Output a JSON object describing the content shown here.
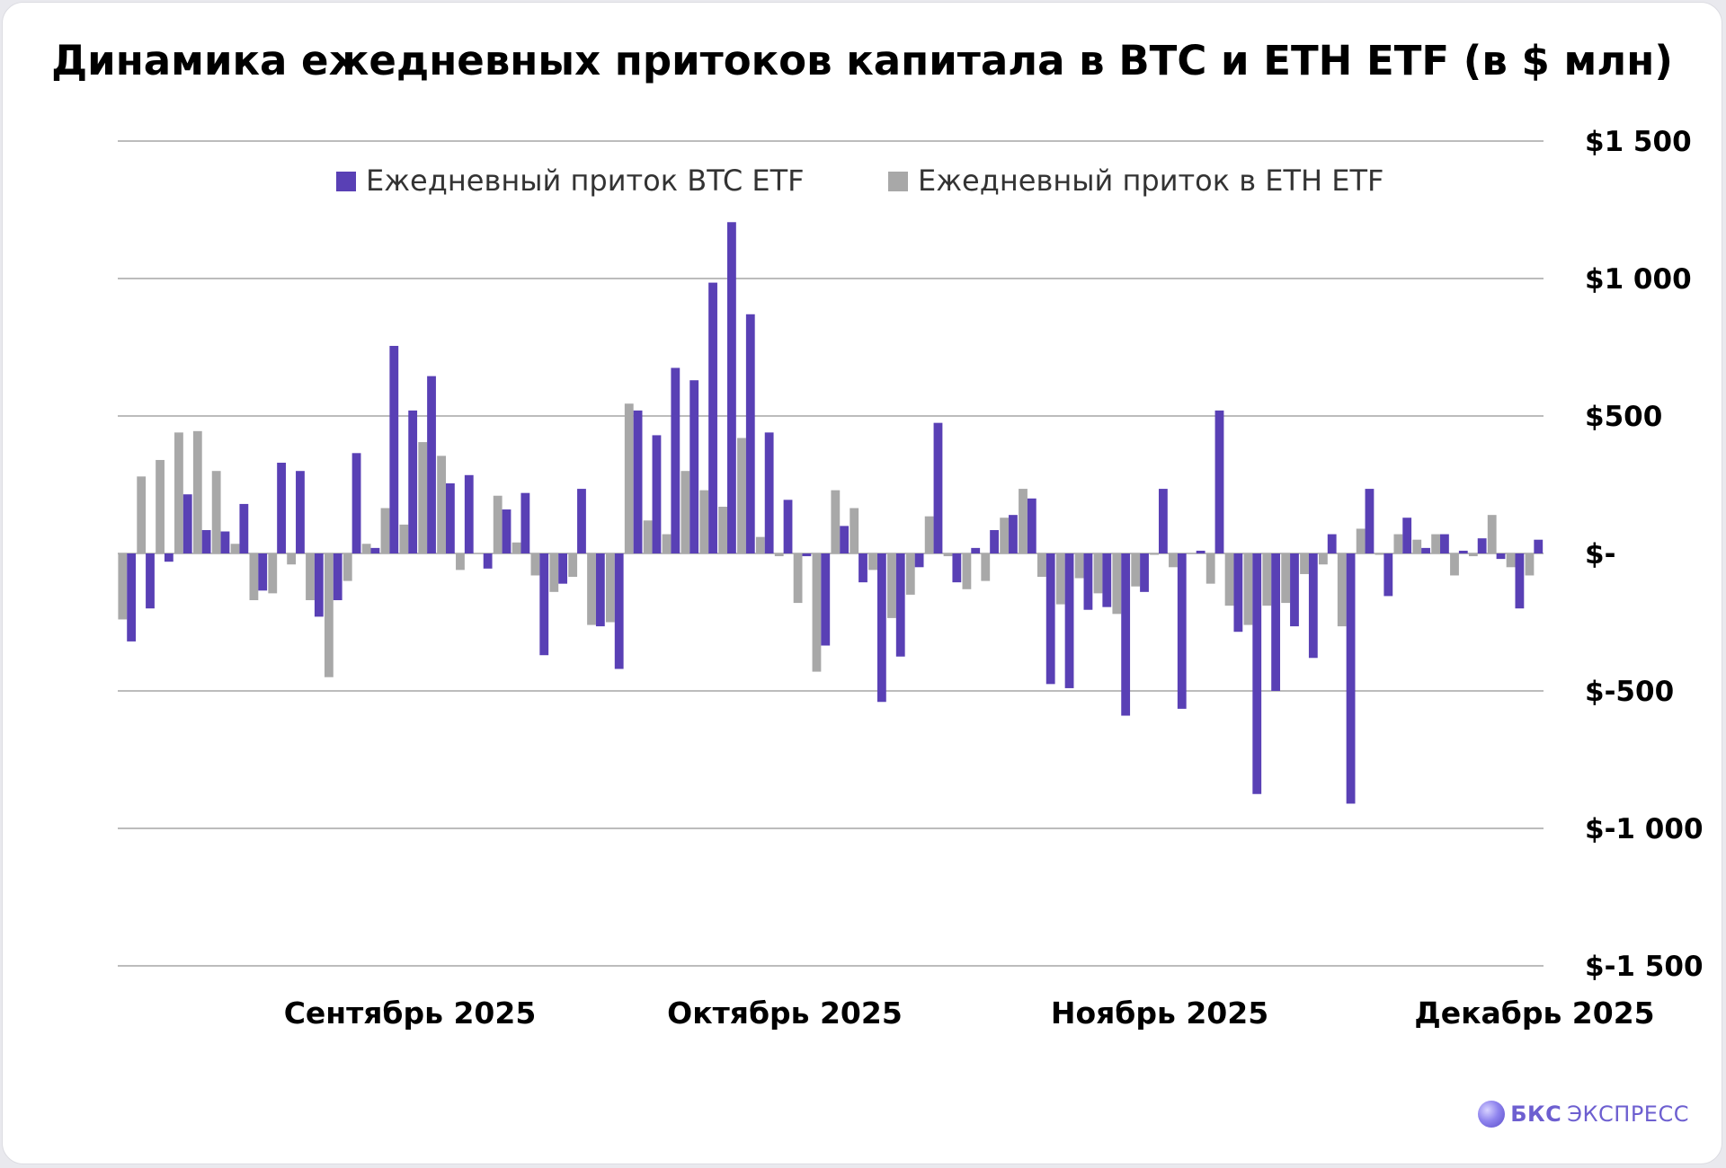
{
  "title": "Динамика ежедневных притоков капитала в BTC и ETH ETF (в $ млн)",
  "brand": {
    "logo_icon": "bks-sphere-logo-icon",
    "name_bold": "БКС",
    "name_rest": "ЭКСПРЕСС"
  },
  "colors": {
    "btc": "#5940B5",
    "eth": "#A8A8A8",
    "grid": "#A6A6A6"
  },
  "chart_data": {
    "type": "bar",
    "title": "Динамика ежедневных притоков капитала в BTC и ETH ETF (в $ млн)",
    "xlabel": "",
    "ylabel": "",
    "ylim": [
      -1500,
      1500
    ],
    "y_ticks": [
      1500,
      1000,
      500,
      0,
      -500,
      -1000,
      -1500
    ],
    "y_tick_labels": [
      "$1 500",
      "$1 000",
      "$500",
      "$-",
      "$-500",
      "$-1 000",
      "$-1 500"
    ],
    "grid": true,
    "legend_position": "top-center",
    "x_tick_labels": [
      "Сентябрь 2025",
      "Октябрь 2025",
      "Ноябрь 2025",
      "Декабрь 2025"
    ],
    "series": [
      {
        "name": "Ежедневный приток BTC ETF",
        "values": [
          -320,
          -200,
          -30,
          215,
          85,
          80,
          180,
          -135,
          330,
          300,
          -230,
          -170,
          365,
          20,
          755,
          520,
          645,
          255,
          285,
          -55,
          160,
          220,
          -370,
          -110,
          235,
          -265,
          -420,
          520,
          430,
          675,
          630,
          985,
          1205,
          870,
          440,
          195,
          -10,
          -335,
          100,
          -105,
          -540,
          -375,
          -50,
          475,
          -105,
          20,
          85,
          140,
          200,
          -475,
          -490,
          -205,
          -195,
          -590,
          -140,
          235,
          -565,
          10,
          520,
          -285,
          -875,
          -500,
          -265,
          -380,
          70,
          -910,
          235,
          -155,
          130,
          20,
          70,
          10,
          55,
          -20,
          -200,
          50
        ]
      },
      {
        "name": "Ежедневный приток в ETH ETF",
        "values": [
          -240,
          280,
          340,
          440,
          445,
          300,
          35,
          -170,
          -145,
          -40,
          -170,
          -450,
          -100,
          35,
          165,
          105,
          405,
          355,
          -60,
          0,
          210,
          40,
          -80,
          -140,
          -85,
          -260,
          -250,
          545,
          120,
          70,
          300,
          230,
          170,
          420,
          60,
          -10,
          -180,
          -430,
          230,
          165,
          -60,
          -235,
          -150,
          135,
          -10,
          -130,
          -100,
          130,
          235,
          -85,
          -185,
          -90,
          -145,
          -220,
          -120,
          -5,
          -50,
          0,
          -110,
          -190,
          -260,
          -190,
          -180,
          -75,
          -40,
          -265,
          90,
          -5,
          70,
          50,
          70,
          -80,
          -10,
          140,
          -50,
          -80
        ]
      }
    ]
  }
}
